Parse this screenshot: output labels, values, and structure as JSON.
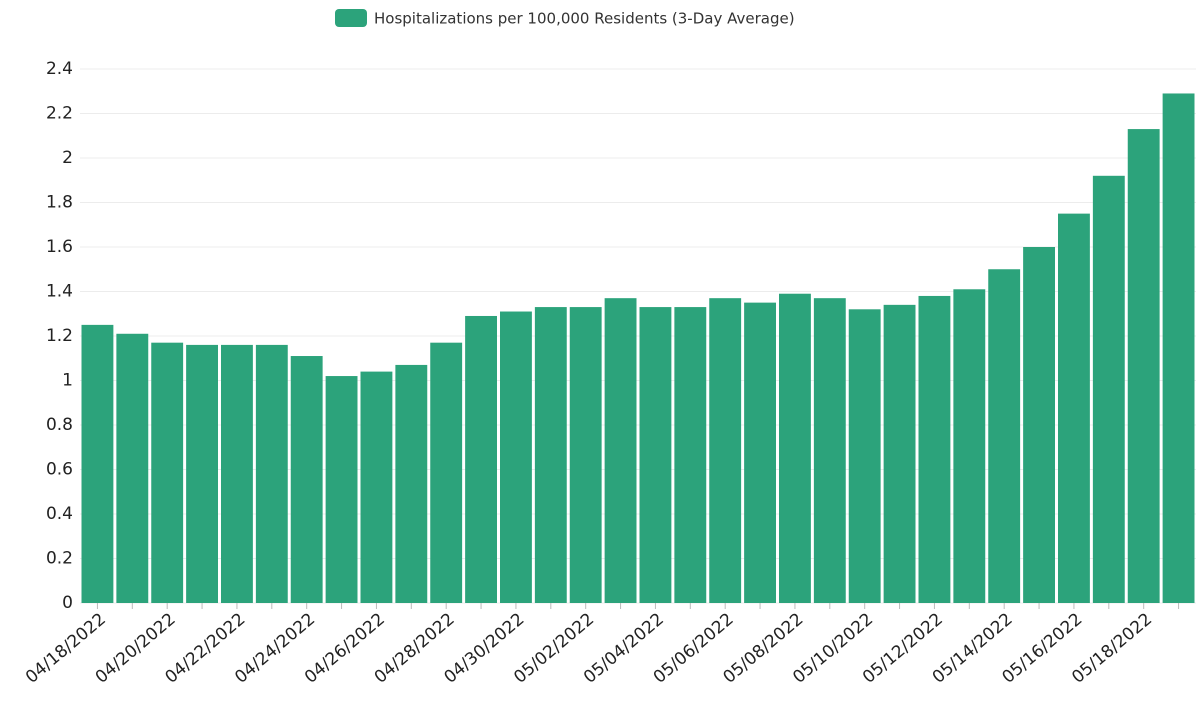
{
  "chart_data": {
    "type": "bar",
    "series": [
      {
        "name": "Hospitalizations per 100,000 Residents (3-Day Average)",
        "color": "#2ca37b",
        "values": [
          1.25,
          1.21,
          1.17,
          1.16,
          1.16,
          1.16,
          1.11,
          1.02,
          1.04,
          1.07,
          1.17,
          1.29,
          1.31,
          1.33,
          1.33,
          1.37,
          1.33,
          1.33,
          1.37,
          1.35,
          1.39,
          1.37,
          1.32,
          1.34,
          1.38,
          1.41,
          1.5,
          1.6,
          1.75,
          1.92,
          2.13,
          2.29
        ]
      }
    ],
    "categories": [
      "04/18/2022",
      null,
      "04/20/2022",
      null,
      "04/22/2022",
      null,
      "04/24/2022",
      null,
      "04/26/2022",
      null,
      "04/28/2022",
      null,
      "04/30/2022",
      null,
      "05/02/2022",
      null,
      "05/04/2022",
      null,
      "05/06/2022",
      null,
      "05/08/2022",
      null,
      "05/10/2022",
      null,
      "05/12/2022",
      null,
      "05/14/2022",
      null,
      "05/16/2022",
      null,
      "05/18/2022",
      null
    ],
    "ylim": [
      0,
      2.4
    ],
    "yticks": [
      0,
      0.2,
      0.4,
      0.6,
      0.8,
      1,
      1.2,
      1.4,
      1.6,
      1.8,
      2,
      2.2,
      2.4
    ],
    "grid": true,
    "legend": "top"
  }
}
